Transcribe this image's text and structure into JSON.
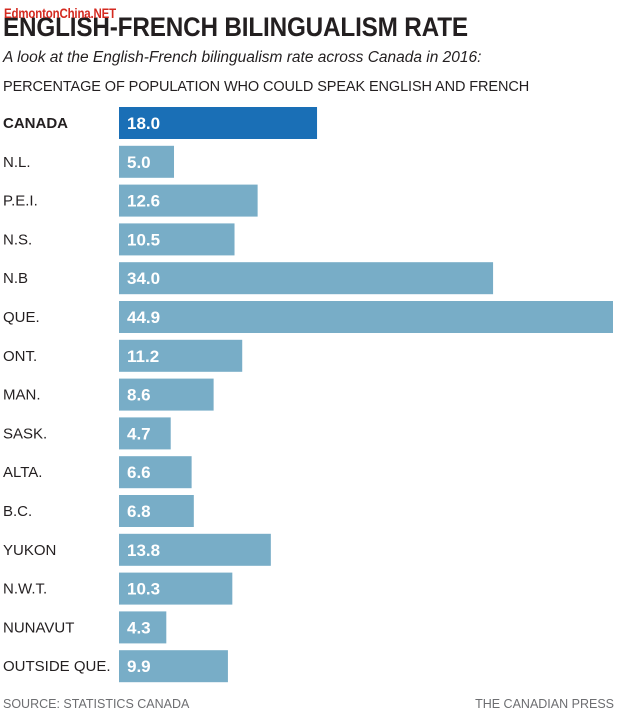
{
  "watermark": "EdmontonChina.NET",
  "chart_data": {
    "type": "bar",
    "orientation": "horizontal",
    "title": "ENGLISH-FRENCH BILINGUALISM RATE",
    "subtitle": "A look at the English-French bilingualism rate across Canada in 2016:",
    "heading": "PERCENTAGE OF POPULATION WHO COULD SPEAK ENGLISH AND FRENCH",
    "categories": [
      "CANADA",
      "N.L.",
      "P.E.I.",
      "N.S.",
      "N.B",
      "QUE.",
      "ONT.",
      "MAN.",
      "SASK.",
      "ALTA.",
      "B.C.",
      "YUKON",
      "N.W.T.",
      "NUNAVUT",
      "OUTSIDE QUE."
    ],
    "values": [
      18.0,
      5.0,
      12.6,
      10.5,
      34.0,
      44.9,
      11.2,
      8.6,
      4.7,
      6.6,
      6.8,
      13.8,
      10.3,
      4.3,
      9.9
    ],
    "value_labels": [
      "18.0",
      "5.0",
      "12.6",
      "10.5",
      "34.0",
      "44.9",
      "11.2",
      "8.6",
      "4.7",
      "6.6",
      "6.8",
      "13.8",
      "10.3",
      "4.3",
      "9.9"
    ],
    "highlight_category": "CANADA",
    "colors": {
      "highlight": "#1a6fb6",
      "bar": "#78adc7"
    },
    "source": "SOURCE: STATISTICS CANADA",
    "credit": "THE CANADIAN PRESS"
  }
}
